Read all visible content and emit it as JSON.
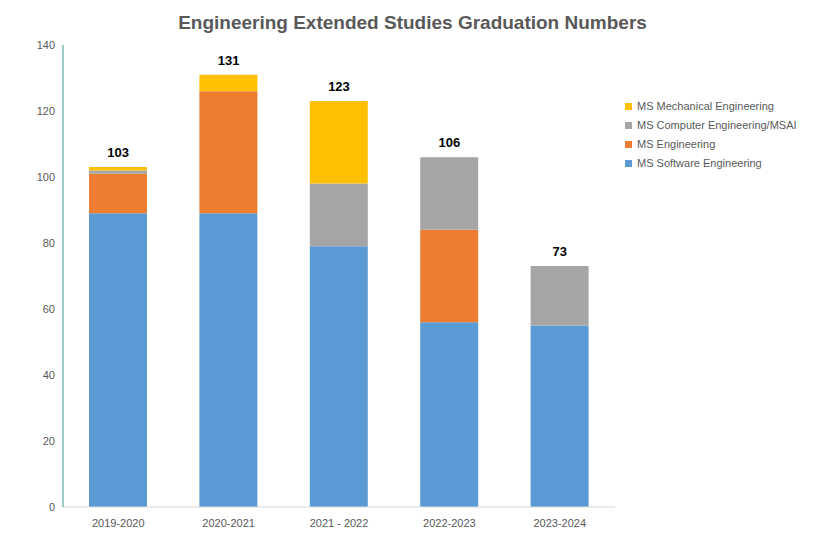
{
  "chart_data": {
    "type": "bar",
    "title": "Engineering Extended Studies Graduation Numbers",
    "categories": [
      "2019-2020",
      "2020-2021",
      "2021 - 2022",
      "2022-2023",
      "2023-2024"
    ],
    "series": [
      {
        "name": "MS Software Engineering",
        "color": "#5b9bd5",
        "values": [
          89,
          89,
          79,
          56,
          55
        ]
      },
      {
        "name": "MS Engineering",
        "color": "#ed7d31",
        "values": [
          12,
          37,
          0,
          28,
          0
        ]
      },
      {
        "name": "MS Computer Engineering/MSAI",
        "color": "#a5a5a5",
        "values": [
          1,
          0,
          19,
          22,
          18
        ]
      },
      {
        "name": "MS Mechanical Engineering",
        "color": "#ffc000",
        "values": [
          1,
          5,
          25,
          0,
          0
        ]
      }
    ],
    "totals": [
      103,
      131,
      123,
      106,
      73
    ],
    "ylim": [
      0,
      140
    ],
    "yticks": [
      0,
      20,
      40,
      60,
      80,
      100,
      120,
      140
    ],
    "stacked": true,
    "grid": false,
    "legend": "upper right"
  }
}
